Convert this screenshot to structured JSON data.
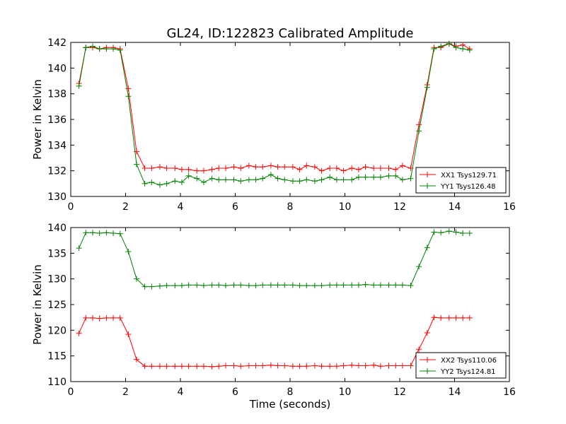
{
  "figure": {
    "title": "GL24, ID:122823 Calibrated Amplitude"
  },
  "chart_data": [
    {
      "type": "line",
      "title": "GL24, ID:122823 Calibrated Amplitude",
      "xlabel": "",
      "ylabel": "Power in Kelvin",
      "xlim": [
        0,
        16
      ],
      "ylim": [
        130,
        142
      ],
      "x_ticks": [
        "0",
        "2",
        "4",
        "6",
        "8",
        "10",
        "12",
        "14",
        "16"
      ],
      "y_ticks": [
        "130",
        "132",
        "134",
        "136",
        "138",
        "140",
        "142"
      ],
      "grid": false,
      "legend_position": "lower-right",
      "marker": "plus",
      "x": [
        0.3,
        0.55,
        0.8,
        1.05,
        1.3,
        1.55,
        1.8,
        2.1,
        2.4,
        2.7,
        2.95,
        3.25,
        3.5,
        3.8,
        4.05,
        4.3,
        4.6,
        4.85,
        5.15,
        5.4,
        5.65,
        5.95,
        6.2,
        6.5,
        6.75,
        7.0,
        7.3,
        7.55,
        7.8,
        8.1,
        8.35,
        8.6,
        8.9,
        9.15,
        9.45,
        9.7,
        9.95,
        10.25,
        10.5,
        10.75,
        11.05,
        11.3,
        11.6,
        11.85,
        12.1,
        12.4,
        12.7,
        13.0,
        13.25,
        13.5,
        13.8,
        14.05,
        14.3,
        14.55
      ],
      "series": [
        {
          "name": "XX1 Tsys129.71",
          "color": "#ff0000",
          "values": [
            138.8,
            141.6,
            141.6,
            141.5,
            141.6,
            141.6,
            141.5,
            138.4,
            133.5,
            132.2,
            132.2,
            132.3,
            132.2,
            132.2,
            132.1,
            132.1,
            132.0,
            132.0,
            132.1,
            132.2,
            132.2,
            132.3,
            132.2,
            132.4,
            132.3,
            132.3,
            132.4,
            132.3,
            132.3,
            132.3,
            132.1,
            132.4,
            132.3,
            132.0,
            132.2,
            132.2,
            132.0,
            132.2,
            132.1,
            132.3,
            132.2,
            132.2,
            132.2,
            132.1,
            132.4,
            132.2,
            135.6,
            138.7,
            141.6,
            141.6,
            141.9,
            141.7,
            141.8,
            141.5
          ]
        },
        {
          "name": "YY1 Tsys126.48",
          "color": "#008000",
          "values": [
            138.6,
            141.6,
            141.7,
            141.5,
            141.5,
            141.5,
            141.4,
            137.8,
            132.5,
            131.0,
            131.1,
            130.9,
            131.0,
            131.2,
            131.1,
            131.6,
            131.4,
            131.1,
            131.4,
            131.3,
            131.3,
            131.3,
            131.2,
            131.3,
            131.3,
            131.4,
            131.7,
            131.4,
            131.3,
            131.2,
            131.2,
            131.3,
            131.2,
            131.3,
            131.5,
            131.3,
            131.3,
            131.3,
            131.5,
            131.5,
            131.5,
            131.5,
            131.6,
            131.6,
            131.3,
            131.4,
            135.1,
            138.5,
            141.5,
            141.7,
            141.9,
            141.6,
            141.5,
            141.4
          ]
        }
      ]
    },
    {
      "type": "line",
      "title": "",
      "xlabel": "Time (seconds)",
      "ylabel": "Power in Kelvin",
      "xlim": [
        0,
        16
      ],
      "ylim": [
        110,
        140
      ],
      "x_ticks": [
        "0",
        "2",
        "4",
        "6",
        "8",
        "10",
        "12",
        "14",
        "16"
      ],
      "y_ticks": [
        "110",
        "115",
        "120",
        "125",
        "130",
        "135",
        "140"
      ],
      "grid": false,
      "legend_position": "lower-right",
      "marker": "plus",
      "x": [
        0.3,
        0.55,
        0.8,
        1.05,
        1.3,
        1.55,
        1.8,
        2.1,
        2.4,
        2.7,
        2.95,
        3.25,
        3.5,
        3.8,
        4.05,
        4.3,
        4.6,
        4.85,
        5.15,
        5.4,
        5.65,
        5.95,
        6.2,
        6.5,
        6.75,
        7.0,
        7.3,
        7.55,
        7.8,
        8.1,
        8.35,
        8.6,
        8.9,
        9.15,
        9.45,
        9.7,
        9.95,
        10.25,
        10.5,
        10.75,
        11.05,
        11.3,
        11.6,
        11.85,
        12.1,
        12.4,
        12.7,
        13.0,
        13.25,
        13.5,
        13.8,
        14.05,
        14.3,
        14.55
      ],
      "series": [
        {
          "name": "XX2 Tsys110.06",
          "color": "#ff0000",
          "values": [
            119.4,
            122.4,
            122.4,
            122.3,
            122.4,
            122.4,
            122.4,
            119.2,
            114.3,
            113.0,
            113.0,
            113.0,
            113.0,
            113.0,
            113.0,
            113.0,
            113.0,
            113.0,
            112.9,
            113.0,
            113.1,
            113.1,
            113.0,
            113.1,
            113.1,
            113.1,
            113.2,
            113.1,
            113.1,
            113.0,
            113.0,
            113.0,
            113.1,
            113.0,
            113.0,
            113.0,
            113.1,
            113.2,
            113.1,
            113.1,
            113.2,
            113.0,
            113.1,
            113.1,
            113.1,
            113.1,
            116.3,
            119.5,
            122.5,
            122.4,
            122.4,
            122.4,
            122.4,
            122.4
          ]
        },
        {
          "name": "YY2 Tsys124.81",
          "color": "#008000",
          "values": [
            136.0,
            139.0,
            139.0,
            138.9,
            139.0,
            138.9,
            138.8,
            135.3,
            130.0,
            128.5,
            128.5,
            128.6,
            128.7,
            128.7,
            128.7,
            128.8,
            128.8,
            128.7,
            128.8,
            128.8,
            128.7,
            128.8,
            128.8,
            128.7,
            128.7,
            128.8,
            128.8,
            128.8,
            128.8,
            128.8,
            128.7,
            128.7,
            128.7,
            128.7,
            128.8,
            128.8,
            128.8,
            128.8,
            128.8,
            128.9,
            128.8,
            128.8,
            128.8,
            128.8,
            128.8,
            128.7,
            132.4,
            136.1,
            139.1,
            139.0,
            139.3,
            139.1,
            138.9,
            138.9
          ]
        }
      ]
    }
  ]
}
